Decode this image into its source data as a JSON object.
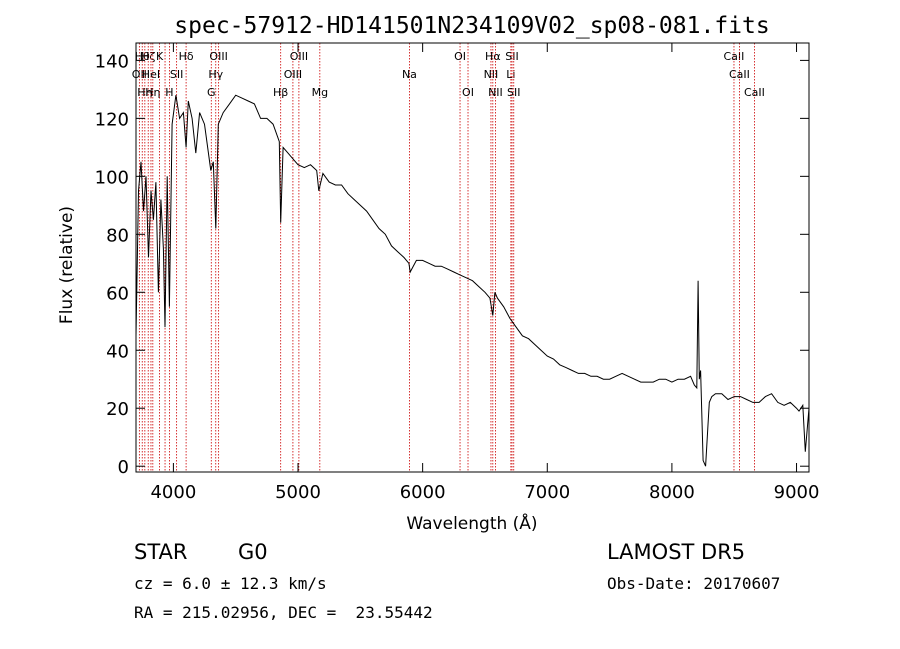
{
  "chart_data": {
    "type": "line",
    "title": "spec-57912-HD141501N234109V02_sp08-081.fits",
    "xlabel": "Wavelength (Å)",
    "ylabel": "Flux (relative)",
    "xlim": [
      3700,
      9100
    ],
    "ylim": [
      -2,
      146
    ],
    "xticks": [
      4000,
      5000,
      6000,
      7000,
      8000,
      9000
    ],
    "yticks": [
      0,
      20,
      40,
      60,
      80,
      100,
      120,
      140
    ],
    "grid": false,
    "line_color": "#000000",
    "marker_color": "#cc0000",
    "series": [
      {
        "x": [
          3700,
          3720,
          3740,
          3760,
          3780,
          3800,
          3820,
          3840,
          3860,
          3880,
          3900,
          3920,
          3933,
          3950,
          3968,
          3990,
          4020,
          4050,
          4080,
          4102,
          4120,
          4150,
          4180,
          4210,
          4250,
          4300,
          4320,
          4340,
          4360,
          4400,
          4450,
          4500,
          4550,
          4600,
          4650,
          4700,
          4750,
          4800,
          4850,
          4861,
          4880,
          4920,
          4960,
          5000,
          5050,
          5100,
          5150,
          5167,
          5200,
          5250,
          5300,
          5350,
          5400,
          5450,
          5500,
          5550,
          5600,
          5650,
          5700,
          5750,
          5800,
          5850,
          5890,
          5900,
          5950,
          6000,
          6050,
          6100,
          6150,
          6200,
          6250,
          6300,
          6350,
          6400,
          6450,
          6500,
          6540,
          6563,
          6580,
          6600,
          6650,
          6700,
          6750,
          6800,
          6850,
          6900,
          6950,
          7000,
          7050,
          7100,
          7150,
          7200,
          7250,
          7300,
          7350,
          7400,
          7450,
          7500,
          7550,
          7600,
          7650,
          7700,
          7750,
          7800,
          7850,
          7900,
          7950,
          8000,
          8050,
          8100,
          8150,
          8180,
          8200,
          8210,
          8220,
          8230,
          8250,
          8270,
          8300,
          8320,
          8350,
          8400,
          8450,
          8500,
          8550,
          8600,
          8650,
          8700,
          8750,
          8800,
          8850,
          8900,
          8950,
          9000,
          9020,
          9050,
          9070,
          9100
        ],
        "y": [
          45,
          95,
          105,
          88,
          100,
          72,
          95,
          85,
          98,
          60,
          92,
          75,
          48,
          100,
          55,
          118,
          128,
          120,
          122,
          110,
          126,
          120,
          108,
          122,
          118,
          102,
          105,
          82,
          118,
          122,
          125,
          128,
          127,
          126,
          125,
          120,
          120,
          118,
          112,
          84,
          110,
          108,
          106,
          104,
          103,
          104,
          102,
          95,
          101,
          98,
          97,
          97,
          94,
          92,
          90,
          88,
          85,
          82,
          80,
          76,
          74,
          72,
          70,
          67,
          71,
          71,
          70,
          69,
          69,
          68,
          67,
          66,
          65,
          64,
          62,
          60,
          58,
          52,
          60,
          58,
          55,
          51,
          48,
          45,
          44,
          42,
          40,
          38,
          37,
          35,
          34,
          33,
          32,
          32,
          31,
          31,
          30,
          30,
          31,
          32,
          31,
          30,
          29,
          29,
          29,
          30,
          30,
          29,
          30,
          30,
          31,
          28,
          27,
          64,
          30,
          33,
          2,
          0,
          22,
          24,
          25,
          25,
          23,
          24,
          24,
          23,
          22,
          22,
          24,
          25,
          22,
          21,
          22,
          20,
          19,
          21,
          5,
          20
        ]
      }
    ],
    "line_markers": [
      {
        "wl": 3727,
        "label": "OII",
        "row": 1
      },
      {
        "wl": 3750,
        "label": "Hθ",
        "row": 0
      },
      {
        "wl": 3771,
        "label": "Hη",
        "row": 2
      },
      {
        "wl": 3798,
        "label": "Hζ",
        "row": 0
      },
      {
        "wl": 3820,
        "label": "HeI",
        "row": 1
      },
      {
        "wl": 3835,
        "label": "Hη",
        "row": 2
      },
      {
        "wl": 3889,
        "label": "K",
        "row": 0
      },
      {
        "wl": 3933,
        "label": "",
        "row": 0
      },
      {
        "wl": 3968,
        "label": "H",
        "row": 2
      },
      {
        "wl": 4026,
        "label": "SII",
        "row": 1
      },
      {
        "wl": 4102,
        "label": "Hδ",
        "row": 0
      },
      {
        "wl": 4304,
        "label": "G",
        "row": 2
      },
      {
        "wl": 4340,
        "label": "Hγ",
        "row": 1
      },
      {
        "wl": 4363,
        "label": "OIII",
        "row": 0
      },
      {
        "wl": 4861,
        "label": "Hβ",
        "row": 2
      },
      {
        "wl": 4959,
        "label": "OIII",
        "row": 1
      },
      {
        "wl": 5007,
        "label": "OIII",
        "row": 0
      },
      {
        "wl": 5175,
        "label": "Mg",
        "row": 2
      },
      {
        "wl": 5894,
        "label": "Na",
        "row": 1
      },
      {
        "wl": 6300,
        "label": "OI",
        "row": 0
      },
      {
        "wl": 6364,
        "label": "OI",
        "row": 2
      },
      {
        "wl": 6548,
        "label": "NII",
        "row": 1
      },
      {
        "wl": 6563,
        "label": "Hα",
        "row": 0
      },
      {
        "wl": 6584,
        "label": "NII",
        "row": 2
      },
      {
        "wl": 6708,
        "label": "Li",
        "row": 1
      },
      {
        "wl": 6717,
        "label": "SII",
        "row": 0
      },
      {
        "wl": 6731,
        "label": "SII",
        "row": 2
      },
      {
        "wl": 8498,
        "label": "CaII",
        "row": 0
      },
      {
        "wl": 8542,
        "label": "CaII",
        "row": 1
      },
      {
        "wl": 8662,
        "label": "CaII",
        "row": 2
      }
    ]
  },
  "info": {
    "class_label": "STAR",
    "subclass": "G0",
    "survey": "LAMOST DR5",
    "cz": "cz = 6.0 ± 12.3 km/s",
    "obs_date": "Obs-Date: 20170607",
    "radec": "RA = 215.02956, DEC =  23.55442"
  }
}
